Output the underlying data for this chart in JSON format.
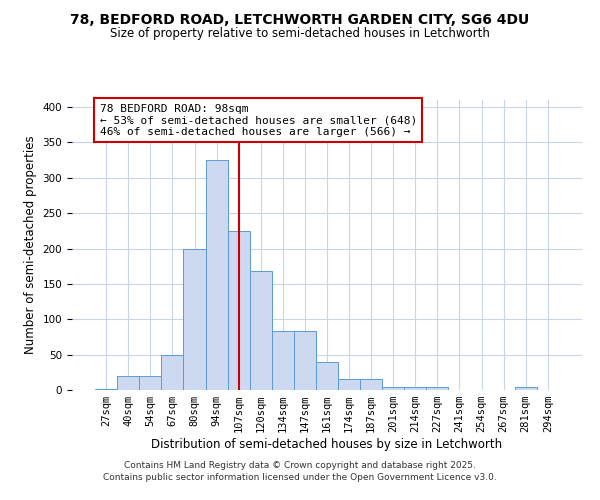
{
  "title": "78, BEDFORD ROAD, LETCHWORTH GARDEN CITY, SG6 4DU",
  "subtitle": "Size of property relative to semi-detached houses in Letchworth",
  "xlabel": "Distribution of semi-detached houses by size in Letchworth",
  "ylabel": "Number of semi-detached properties",
  "bar_labels": [
    "27sqm",
    "40sqm",
    "54sqm",
    "67sqm",
    "80sqm",
    "94sqm",
    "107sqm",
    "120sqm",
    "134sqm",
    "147sqm",
    "161sqm",
    "174sqm",
    "187sqm",
    "201sqm",
    "214sqm",
    "227sqm",
    "241sqm",
    "254sqm",
    "267sqm",
    "281sqm",
    "294sqm"
  ],
  "bar_values": [
    2,
    20,
    20,
    50,
    200,
    325,
    225,
    168,
    84,
    84,
    40,
    15,
    15,
    4,
    4,
    4,
    0,
    0,
    0,
    4,
    0
  ],
  "bar_color": "#ccd9f0",
  "bar_edge_color": "#5b9bd5",
  "vline_x": 6,
  "vline_color": "#cc0000",
  "annotation_title": "78 BEDFORD ROAD: 98sqm",
  "annotation_line2": "← 53% of semi-detached houses are smaller (648)",
  "annotation_line3": "46% of semi-detached houses are larger (566) →",
  "annotation_box_color": "#cc0000",
  "ylim": [
    0,
    410
  ],
  "yticks": [
    0,
    50,
    100,
    150,
    200,
    250,
    300,
    350,
    400
  ],
  "footer1": "Contains HM Land Registry data © Crown copyright and database right 2025.",
  "footer2": "Contains public sector information licensed under the Open Government Licence v3.0.",
  "bg_color": "#ffffff",
  "grid_color": "#c8d4e8",
  "title_fontsize": 10,
  "subtitle_fontsize": 8.5,
  "axis_label_fontsize": 8.5,
  "tick_fontsize": 7.5,
  "annotation_fontsize": 8,
  "footer_fontsize": 6.5
}
